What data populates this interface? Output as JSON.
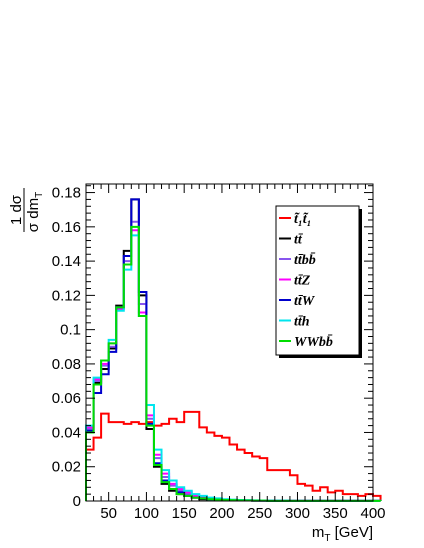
{
  "chart_data": {
    "type": "line",
    "title": "",
    "xlabel": "m_T [GeV]",
    "xlabel_parts": {
      "main": "m",
      "sub": "T",
      "unit": " [GeV]"
    },
    "ylabel_parts": {
      "numerator": "1 dσ",
      "denominator_main": "σ dm",
      "denominator_sub": "T"
    },
    "xlim": [
      20,
      400
    ],
    "ylim": [
      0,
      0.185
    ],
    "bin_width": 10,
    "x_start": 20,
    "x_ticks": [
      50,
      100,
      150,
      200,
      250,
      300,
      350,
      400
    ],
    "x_tick_labels": [
      "50",
      "100",
      "150",
      "200",
      "250",
      "300",
      "350",
      "400"
    ],
    "y_ticks": [
      0,
      0.02,
      0.04,
      0.06,
      0.08,
      0.1,
      0.12,
      0.14,
      0.16,
      0.18
    ],
    "y_tick_labels": [
      "0",
      "0.02",
      "0.04",
      "0.06",
      "0.08",
      "0.1",
      "0.12",
      "0.14",
      "0.16",
      "0.18"
    ],
    "legend_position": "top-right",
    "series": [
      {
        "name": "t̃₁t̃₁",
        "color": "#ff0000",
        "values": [
          0.03,
          0.037,
          0.051,
          0.046,
          0.046,
          0.045,
          0.046,
          0.045,
          0.046,
          0.044,
          0.045,
          0.048,
          0.046,
          0.052,
          0.052,
          0.043,
          0.04,
          0.038,
          0.037,
          0.033,
          0.03,
          0.028,
          0.026,
          0.025,
          0.018,
          0.018,
          0.018,
          0.015,
          0.01,
          0.009,
          0.006,
          0.008,
          0.005,
          0.006,
          0.004,
          0.004,
          0.003,
          0.004,
          0.003
        ]
      },
      {
        "name": "tt̄",
        "color": "#000000",
        "values": [
          0.04,
          0.069,
          0.077,
          0.089,
          0.114,
          0.146,
          0.176,
          0.12,
          0.042,
          0.02,
          0.01,
          0.006,
          0.004,
          0.003,
          0.002,
          0.001,
          0.001,
          0.0008,
          0.0006,
          0.0005,
          0.0004,
          0.0003,
          0.0002,
          0.0002,
          0.0001,
          0.0001,
          0.0001,
          0.0001,
          0.0001,
          0.0001,
          0.0001,
          0.0001,
          0.0001,
          0.0001,
          0.0001,
          0.0001,
          0.0001,
          0.0001,
          0.0001
        ]
      },
      {
        "name": "tt̄bb̄",
        "color": "#8855ee",
        "values": [
          0.042,
          0.07,
          0.079,
          0.09,
          0.113,
          0.14,
          0.163,
          0.115,
          0.048,
          0.025,
          0.014,
          0.009,
          0.006,
          0.004,
          0.003,
          0.002,
          0.0015,
          0.001,
          0.0008,
          0.0006,
          0.0005,
          0.0004,
          0.0003,
          0.0002,
          0.0002,
          0.0002,
          0.0001,
          0.0001,
          0.0001,
          0.0001,
          0.0001,
          0.0001,
          0.0001,
          0.0001,
          0.0001,
          0.0001,
          0.0001,
          0.0001,
          0.0001
        ]
      },
      {
        "name": "tt̄Z",
        "color": "#ff00ff",
        "values": [
          0.043,
          0.071,
          0.08,
          0.092,
          0.112,
          0.138,
          0.158,
          0.11,
          0.05,
          0.027,
          0.016,
          0.01,
          0.007,
          0.005,
          0.003,
          0.002,
          0.0015,
          0.001,
          0.0008,
          0.0006,
          0.0005,
          0.0004,
          0.0003,
          0.0003,
          0.0002,
          0.0002,
          0.0001,
          0.0001,
          0.0001,
          0.0001,
          0.0001,
          0.0001,
          0.0001,
          0.0001,
          0.0001,
          0.0001,
          0.0001,
          0.0001,
          0.0001
        ]
      },
      {
        "name": "tt̄W",
        "color": "#0000cc",
        "values": [
          0.041,
          0.063,
          0.074,
          0.087,
          0.113,
          0.143,
          0.176,
          0.122,
          0.045,
          0.022,
          0.012,
          0.007,
          0.005,
          0.003,
          0.002,
          0.0015,
          0.001,
          0.0008,
          0.0006,
          0.0005,
          0.0004,
          0.0003,
          0.0002,
          0.0002,
          0.0001,
          0.0001,
          0.0001,
          0.0001,
          0.0001,
          0.0001,
          0.0001,
          0.0001,
          0.0001,
          0.0001,
          0.0001,
          0.0001,
          0.0001,
          0.0001,
          0.0001
        ]
      },
      {
        "name": "tt̄h",
        "color": "#00e5ee",
        "values": [
          0.044,
          0.072,
          0.082,
          0.094,
          0.111,
          0.135,
          0.155,
          0.108,
          0.056,
          0.03,
          0.018,
          0.012,
          0.008,
          0.006,
          0.004,
          0.003,
          0.002,
          0.0015,
          0.001,
          0.0008,
          0.0006,
          0.0005,
          0.0004,
          0.0003,
          0.0002,
          0.0002,
          0.0002,
          0.0001,
          0.0001,
          0.0001,
          0.0001,
          0.0001,
          0.0001,
          0.0001,
          0.0001,
          0.0001,
          0.0001,
          0.0001,
          0.0001
        ]
      },
      {
        "name": "WWbb̄",
        "color": "#00dd00",
        "values": [
          0.04,
          0.068,
          0.082,
          0.092,
          0.113,
          0.138,
          0.16,
          0.108,
          0.044,
          0.021,
          0.011,
          0.007,
          0.004,
          0.003,
          0.002,
          0.0015,
          0.001,
          0.0008,
          0.0006,
          0.0005,
          0.0004,
          0.0003,
          0.0002,
          0.0002,
          0.0001,
          0.0001,
          0.0001,
          0.0001,
          0.0001,
          0.0001,
          0.0001,
          0.0001,
          0.0001,
          0.0001,
          0.0001,
          0.0001,
          0.0001,
          0.0001,
          0.0001
        ]
      }
    ]
  }
}
